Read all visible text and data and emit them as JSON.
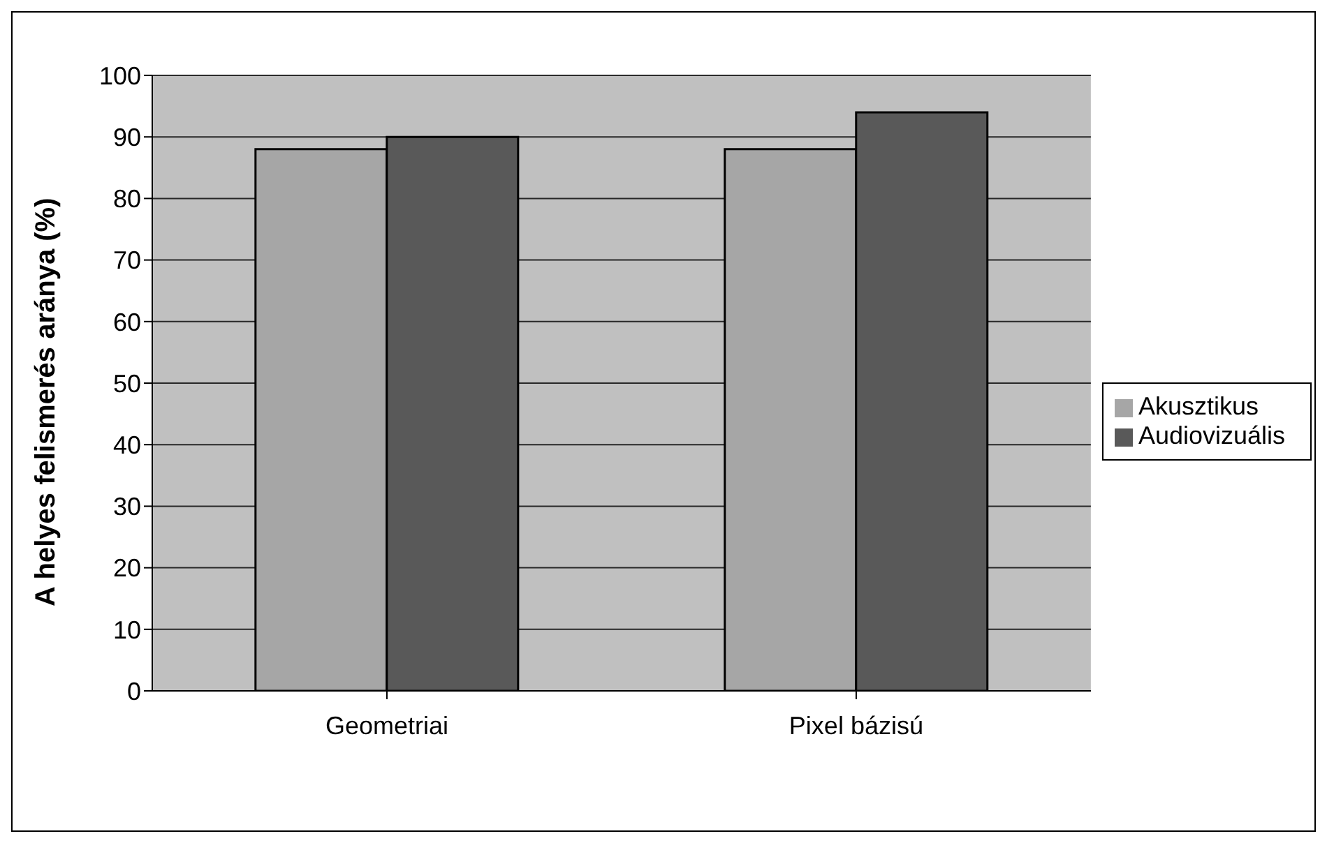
{
  "chart_data": {
    "type": "bar",
    "ylabel": "A helyes felismerés aránya (%)",
    "categories": [
      "Geometriai",
      "Pixel bázisú"
    ],
    "series": [
      {
        "name": "Akusztikus",
        "color": "#a6a6a6",
        "values": [
          88,
          88
        ]
      },
      {
        "name": "Audiovizuális",
        "color": "#595959",
        "values": [
          90,
          94
        ]
      }
    ],
    "ylim": [
      0,
      100
    ],
    "yticks": [
      0,
      10,
      20,
      30,
      40,
      50,
      60,
      70,
      80,
      90,
      100
    ],
    "grid": "y",
    "legend": "right"
  }
}
